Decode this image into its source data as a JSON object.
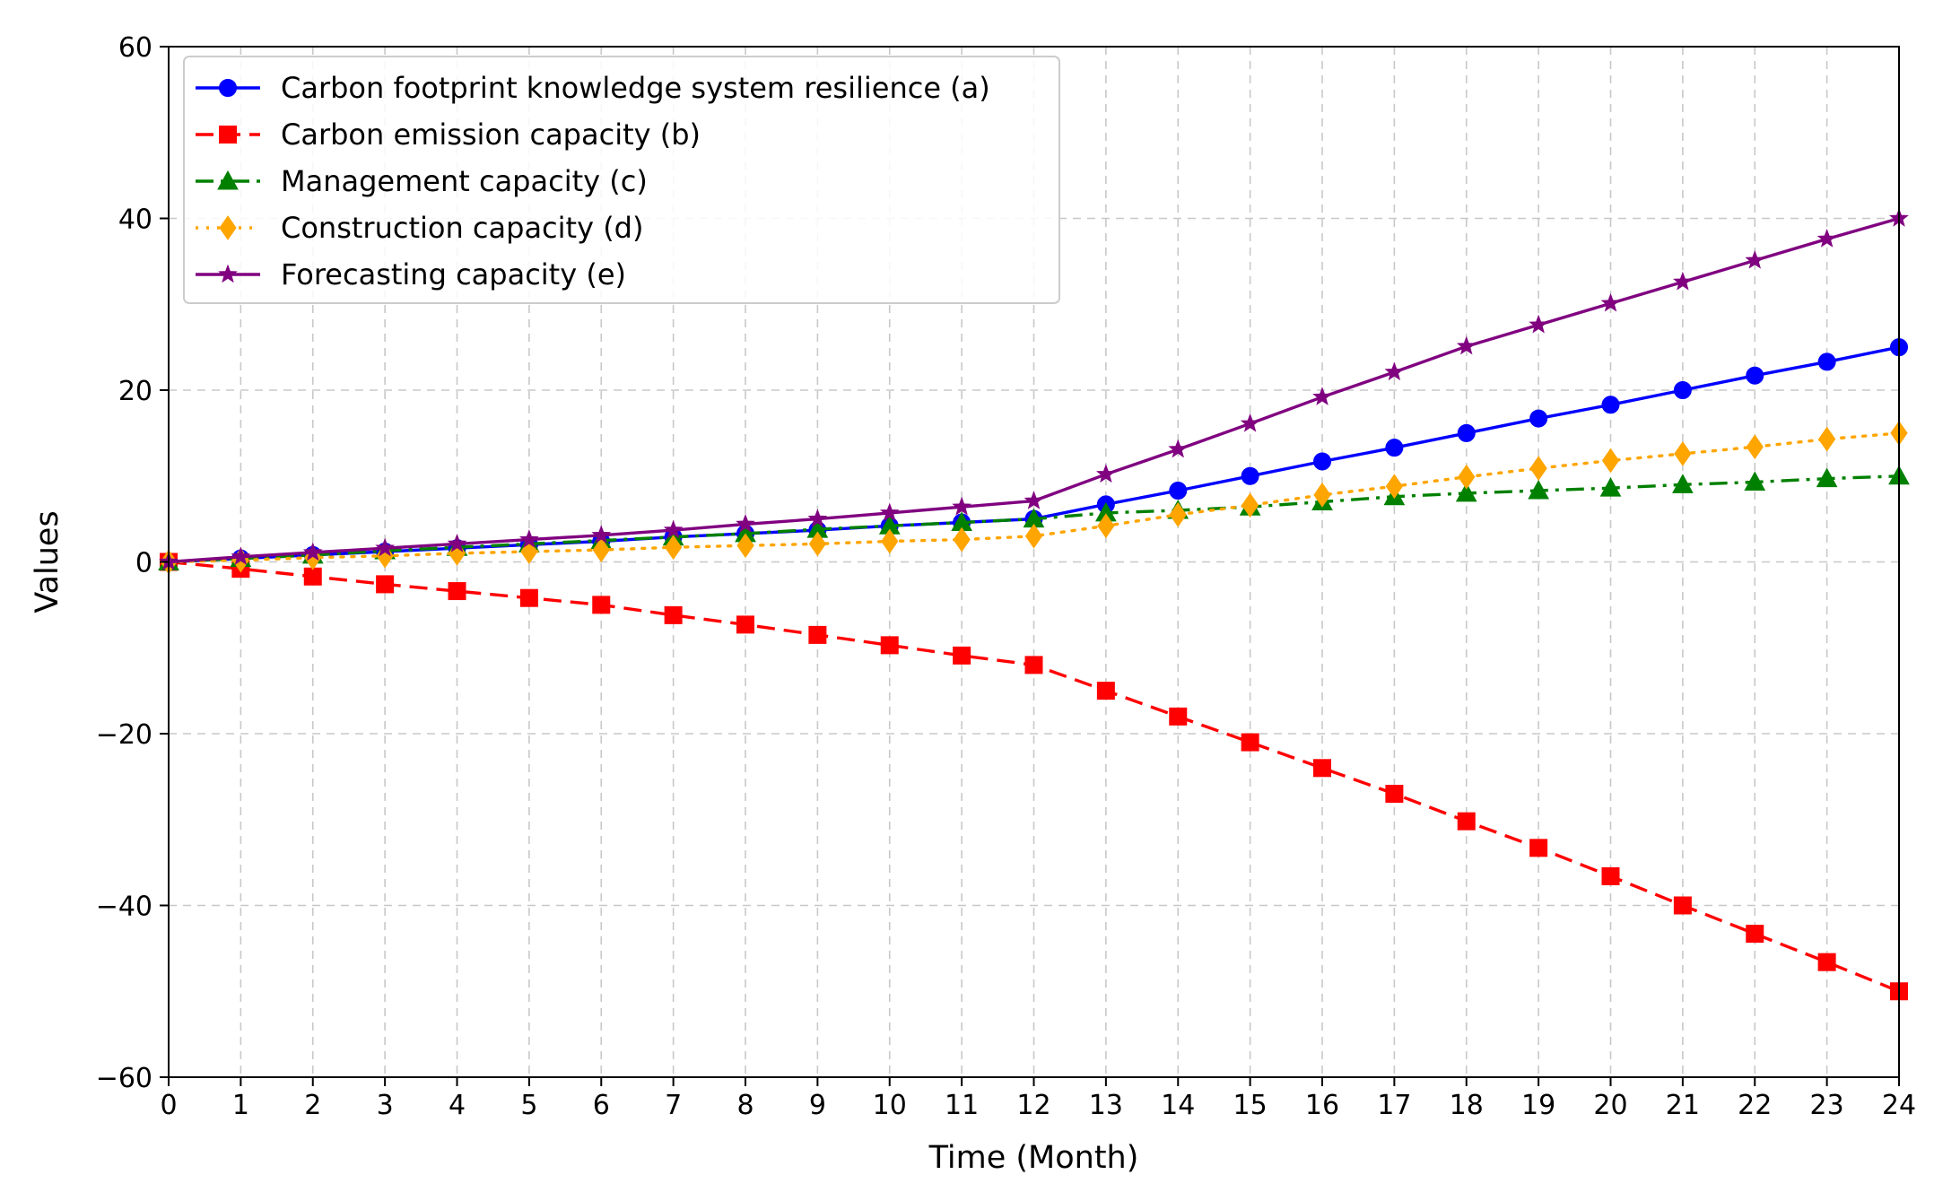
{
  "chart_data": {
    "type": "line",
    "title": "",
    "xlabel": "Time (Month)",
    "ylabel": "Values",
    "xlim": [
      0,
      24
    ],
    "ylim": [
      -60,
      60
    ],
    "grid": true,
    "legend_position": "top-left",
    "x": [
      0,
      1,
      2,
      3,
      4,
      5,
      6,
      7,
      8,
      9,
      10,
      11,
      12,
      13,
      14,
      15,
      16,
      17,
      18,
      19,
      20,
      21,
      22,
      23,
      24
    ],
    "x_tick_labels": [
      "0",
      "1",
      "2",
      "3",
      "4",
      "5",
      "6",
      "7",
      "8",
      "9",
      "10",
      "11",
      "12",
      "13",
      "14",
      "15",
      "16",
      "17",
      "18",
      "19",
      "20",
      "21",
      "22",
      "23",
      "24"
    ],
    "y_ticks": [
      60,
      40,
      20,
      0,
      -20,
      -40,
      -60
    ],
    "y_tick_labels": [
      "60",
      "40",
      "20",
      "0",
      "−20",
      "−40",
      "−60"
    ],
    "series": [
      {
        "name": "Carbon footprint knowledge system resilience (a)",
        "color": "#0000ff",
        "marker": "circle",
        "linestyle": "solid",
        "values": [
          0,
          0.4,
          0.8,
          1.2,
          1.6,
          2.0,
          2.4,
          2.9,
          3.3,
          3.7,
          4.2,
          4.6,
          5.0,
          6.7,
          8.3,
          10.0,
          11.7,
          13.3,
          15.0,
          16.7,
          18.3,
          20.0,
          21.7,
          23.3,
          25.0
        ]
      },
      {
        "name": "Carbon emission capacity (b)",
        "color": "#ff0000",
        "marker": "square",
        "linestyle": "dashed",
        "values": [
          0,
          -0.8,
          -1.7,
          -2.6,
          -3.4,
          -4.2,
          -5.0,
          -6.2,
          -7.3,
          -8.5,
          -9.7,
          -10.9,
          -12.0,
          -15.0,
          -18.0,
          -21.0,
          -24.0,
          -27.0,
          -30.2,
          -33.3,
          -36.6,
          -40.0,
          -43.3,
          -46.6,
          -50.0
        ]
      },
      {
        "name": "Management capacity (c)",
        "color": "#008000",
        "marker": "triangle",
        "linestyle": "dashdot",
        "values": [
          0,
          0.4,
          0.8,
          1.3,
          1.7,
          2.1,
          2.5,
          2.9,
          3.3,
          3.8,
          4.2,
          4.6,
          5.0,
          5.7,
          6.0,
          6.4,
          7.0,
          7.6,
          8.0,
          8.3,
          8.6,
          9.0,
          9.3,
          9.7,
          10.0
        ]
      },
      {
        "name": "Construction capacity (d)",
        "color": "#ffa500",
        "marker": "diamond",
        "linestyle": "dotted",
        "values": [
          0,
          0.2,
          0.5,
          0.7,
          1.0,
          1.2,
          1.4,
          1.7,
          1.9,
          2.1,
          2.4,
          2.6,
          3.0,
          4.2,
          5.5,
          6.6,
          7.8,
          8.8,
          9.9,
          10.9,
          11.8,
          12.6,
          13.4,
          14.3,
          15.0
        ]
      },
      {
        "name": "Forecasting capacity (e)",
        "color": "#800080",
        "marker": "star",
        "linestyle": "solid",
        "values": [
          0,
          0.6,
          1.1,
          1.6,
          2.1,
          2.6,
          3.1,
          3.7,
          4.4,
          5.0,
          5.7,
          6.4,
          7.1,
          10.2,
          13.1,
          16.1,
          19.2,
          22.1,
          25.1,
          27.6,
          30.1,
          32.6,
          35.1,
          37.6,
          40.0
        ]
      }
    ]
  }
}
